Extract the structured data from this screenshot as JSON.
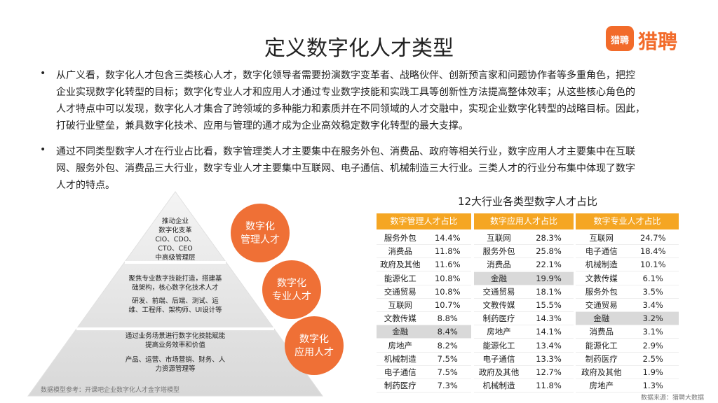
{
  "header": {
    "title": "定义数字化人才类型",
    "logo_icon": "猎聘",
    "logo_text": "猎聘"
  },
  "bullets": [
    [
      "从广义看，数字化人才包含三类核心人才，数字化领导者需要扮演数字变革者、战略伙伴、创新预言家和问题协作者等多重角色，把控",
      "企业实现数字化转型的目标；数字化专业人才和应用人才通过专业数字技能和实践工具等创新性方法提高整体效率；从这些核心角色的",
      "人才特点中可以发现，数字化人才集合了跨领域的多种能力和素质并在不同领域的人才交融中，实现企业数字化转型的战略目标。因此，",
      "打破行业壁垒，兼具数字化技术、应用与管理的通才成为企业高效稳定数字化转型的最大支撑。"
    ],
    [
      "通过不同类型数字人才在行业占比看，数字管理类人才主要集中在服务外包、消费品、政府等相关行业，数字应用人才主要集中在互联",
      "网、服务外包、消费品三大行业，数字专业人才主要集中互联网、电子通信、机械制造三大行业。三类人才的行业分布集中体现了数字",
      "人才的特点。"
    ]
  ],
  "pyramid": [
    [
      [
        "推动企业",
        "数字化变革",
        "CIO、CDO、",
        "CTO、CEO",
        "中高级管理层"
      ]
    ],
    [
      [
        "聚焦专业数字技能打造，搭建基",
        "础架构，核心数字化技术人才"
      ],
      [
        "研发、前端、后端、测试、运",
        "维、工程师、架构师、UI设计等"
      ]
    ],
    [
      [
        "通过业务场景进行数字化技能赋能",
        "提高业务效率和价值"
      ],
      [
        "产品、运营、市场营销、财务、人",
        "力资源管理等"
      ]
    ]
  ],
  "circles": [
    [
      "数字化",
      "管理人才"
    ],
    [
      "数字化",
      "专业人才"
    ],
    [
      "数字化",
      "应用人才"
    ]
  ],
  "table": {
    "title": "12大行业各类型数字人才占比",
    "headers": [
      "数字管理人才占比",
      "数字应用人才占比",
      "数字专业人才占比"
    ],
    "rows": [
      [
        "服务外包",
        "14.4%",
        "互联网",
        "28.3%",
        "互联网",
        "24.7%"
      ],
      [
        "消费品",
        "11.8%",
        "服务外包",
        "25.8%",
        "电子通信",
        "18.4%"
      ],
      [
        "政府及其他",
        "11.6%",
        "消费品",
        "22.1%",
        "机械制造",
        "10.1%"
      ],
      [
        "能源化工",
        "10.8%",
        "金融",
        "19.9%",
        "文教传媒",
        "6.1%"
      ],
      [
        "交通贸易",
        "10.8%",
        "交通贸易",
        "18.1%",
        "服务外包",
        "3.5%"
      ],
      [
        "互联网",
        "10.7%",
        "文教传媒",
        "15.5%",
        "交通贸易",
        "3.4%"
      ],
      [
        "文教传媒",
        "8.8%",
        "制药医疗",
        "14.3%",
        "金融",
        "3.2%"
      ],
      [
        "金融",
        "8.4%",
        "房地产",
        "14.1%",
        "消费品",
        "3.1%"
      ],
      [
        "房地产",
        "8.2%",
        "能源化工",
        "13.4%",
        "能源化工",
        "2.9%"
      ],
      [
        "机械制造",
        "7.5%",
        "电子通信",
        "13.3%",
        "制药医疗",
        "2.5%"
      ],
      [
        "电子通信",
        "7.5%",
        "政府及其他",
        "12.7%",
        "政府及其他",
        "1.9%"
      ],
      [
        "制药医疗",
        "7.3%",
        "机械制造",
        "11.8%",
        "房地产",
        "1.3%"
      ]
    ]
  },
  "footer": {
    "left": "数据模型参考：开课吧企业数字化人才金字塔模型",
    "right": "数据来源：猎聘大数据"
  }
}
